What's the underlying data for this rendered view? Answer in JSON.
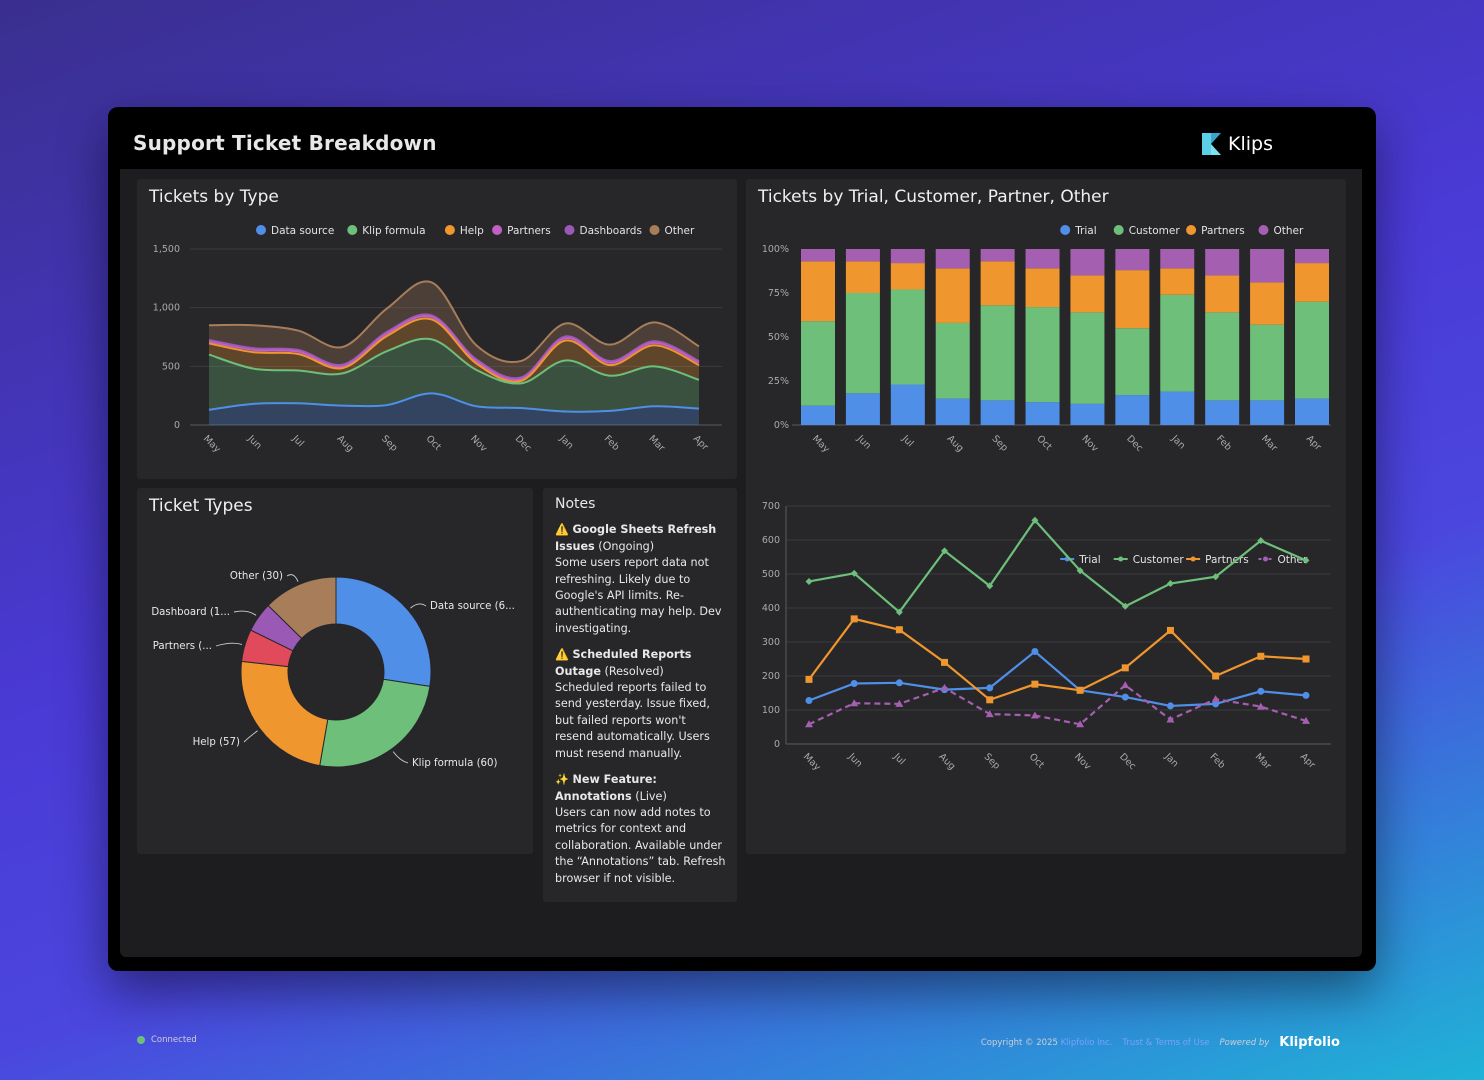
{
  "dashboard": {
    "title": "Support Ticket Breakdown",
    "brand": "Klips"
  },
  "months": [
    "May",
    "Jun",
    "Jul",
    "Aug",
    "Sep",
    "Oct",
    "Nov",
    "Dec",
    "Jan",
    "Feb",
    "Mar",
    "Apr"
  ],
  "panels": {
    "by_type_title": "Tickets by Type",
    "by_trial_title": "Tickets by Trial, Customer, Partner, Other",
    "ticket_types_title": "Ticket Types",
    "notes_title": "Notes"
  },
  "notes": [
    {
      "icon": "⚠️",
      "title": "Google Sheets Refresh Issues",
      "status": "(Ongoing)",
      "body": "Some users report data not refreshing. Likely due to Google's API limits. Re-authenticating may help. Dev investigating."
    },
    {
      "icon": "⚠️",
      "title": "Scheduled Reports Outage",
      "status": "(Resolved)",
      "body": "Scheduled reports failed to send yesterday. Issue fixed, but failed reports won't resend automatically. Users must resend manually."
    },
    {
      "icon": "✨",
      "title": "New Feature: Annotations",
      "status": "(Live)",
      "body": "Users can now add notes to metrics for context and collaboration. Available under the “Annotations” tab. Refresh browser if not visible."
    }
  ],
  "footer": {
    "status": "Connected",
    "copyright": "Copyright © 2025",
    "company": "Klipfolio Inc.",
    "terms": "Trust & Terms of Use",
    "powered": "Powered by",
    "powered_brand": "Klipfolio"
  },
  "chart_data": [
    {
      "type": "area",
      "title": "Tickets by Type",
      "categories": [
        "May",
        "Jun",
        "Jul",
        "Aug",
        "Sep",
        "Oct",
        "Nov",
        "Dec",
        "Jan",
        "Feb",
        "Mar",
        "Apr"
      ],
      "stacked": true,
      "ylim": [
        0,
        1500
      ],
      "yticks": [
        "0",
        "500",
        "1,000",
        "1,500"
      ],
      "legend_position": "top",
      "grid": true,
      "series": [
        {
          "name": "Data source",
          "color": "#4f8fe8",
          "values": [
            130,
            180,
            185,
            165,
            170,
            270,
            160,
            145,
            115,
            120,
            160,
            140
          ]
        },
        {
          "name": "Klip formula",
          "color": "#6dbf7a",
          "values": [
            470,
            300,
            280,
            275,
            460,
            460,
            310,
            210,
            435,
            300,
            340,
            245
          ]
        },
        {
          "name": "Help",
          "color": "#f0962e",
          "values": [
            95,
            140,
            140,
            45,
            130,
            170,
            55,
            20,
            170,
            90,
            180,
            125
          ]
        },
        {
          "name": "Partners",
          "color": "#c060c0",
          "values": [
            15,
            20,
            20,
            15,
            20,
            20,
            20,
            15,
            20,
            20,
            20,
            20
          ]
        },
        {
          "name": "Dashboards",
          "color": "#9b59b6",
          "values": [
            15,
            15,
            15,
            15,
            15,
            15,
            15,
            15,
            15,
            15,
            15,
            15
          ]
        },
        {
          "name": "Other",
          "color": "#a87d5a",
          "values": [
            125,
            195,
            165,
            150,
            200,
            280,
            120,
            140,
            110,
            140,
            160,
            125
          ]
        }
      ]
    },
    {
      "type": "bar",
      "title": "Tickets by Trial, Customer, Partner, Other",
      "stacked_percent": true,
      "categories": [
        "May",
        "Jun",
        "Jul",
        "Aug",
        "Sep",
        "Oct",
        "Nov",
        "Dec",
        "Jan",
        "Feb",
        "Mar",
        "Apr"
      ],
      "ylim": [
        0,
        100
      ],
      "yticks": [
        "0%",
        "25%",
        "50%",
        "75%",
        "100%"
      ],
      "legend_position": "top",
      "series": [
        {
          "name": "Trial",
          "color": "#4f8fe8",
          "values": [
            11,
            18,
            23,
            15,
            14,
            13,
            12,
            17,
            19,
            14,
            14,
            15
          ]
        },
        {
          "name": "Customer",
          "color": "#6dbf7a",
          "values": [
            48,
            57,
            54,
            43,
            54,
            54,
            52,
            38,
            55,
            50,
            43,
            55
          ]
        },
        {
          "name": "Partners",
          "color": "#f0962e",
          "values": [
            34,
            18,
            15,
            31,
            25,
            22,
            21,
            33,
            15,
            21,
            24,
            22
          ]
        },
        {
          "name": "Other",
          "color": "#a55fb0",
          "values": [
            7,
            7,
            8,
            11,
            7,
            11,
            15,
            12,
            11,
            15,
            19,
            8
          ]
        }
      ]
    },
    {
      "type": "pie",
      "title": "Ticket Types",
      "donut": true,
      "slices": [
        {
          "name": "Data source",
          "label": "Data source (6...",
          "value": 65,
          "color": "#4f8fe8"
        },
        {
          "name": "Klip formula",
          "label": "Klip formula (60)",
          "value": 60,
          "color": "#6dbf7a"
        },
        {
          "name": "Help",
          "label": "Help (57)",
          "value": 57,
          "color": "#f0962e"
        },
        {
          "name": "Partners",
          "label": "Partners (...",
          "value": 13,
          "color": "#e04a5a"
        },
        {
          "name": "Dashboard",
          "label": "Dashboard (1...",
          "value": 12,
          "color": "#9b59b6"
        },
        {
          "name": "Other",
          "label": "Other (30)",
          "value": 30,
          "color": "#a87d5a"
        }
      ]
    },
    {
      "type": "line",
      "categories": [
        "May",
        "Jun",
        "Jul",
        "Aug",
        "Sep",
        "Oct",
        "Nov",
        "Dec",
        "Jan",
        "Feb",
        "Mar",
        "Apr"
      ],
      "ylim": [
        0,
        700
      ],
      "yticks": [
        "0",
        "100",
        "200",
        "300",
        "400",
        "500",
        "600",
        "700"
      ],
      "legend_position": "top",
      "grid": true,
      "series": [
        {
          "name": "Trial",
          "color": "#4f8fe8",
          "marker": "circle",
          "values": [
            128,
            178,
            180,
            160,
            165,
            272,
            158,
            138,
            112,
            118,
            155,
            143
          ]
        },
        {
          "name": "Customer",
          "color": "#6dbf7a",
          "marker": "diamond",
          "values": [
            478,
            502,
            388,
            568,
            465,
            658,
            510,
            405,
            472,
            492,
            598,
            540
          ]
        },
        {
          "name": "Partners",
          "color": "#f0962e",
          "marker": "square",
          "values": [
            190,
            368,
            336,
            240,
            130,
            176,
            158,
            224,
            334,
            200,
            258,
            250
          ]
        },
        {
          "name": "Other",
          "color": "#a55fb0",
          "marker": "triangle",
          "dashed": true,
          "values": [
            58,
            120,
            118,
            165,
            88,
            84,
            58,
            173,
            72,
            132,
            110,
            68
          ]
        }
      ]
    }
  ]
}
